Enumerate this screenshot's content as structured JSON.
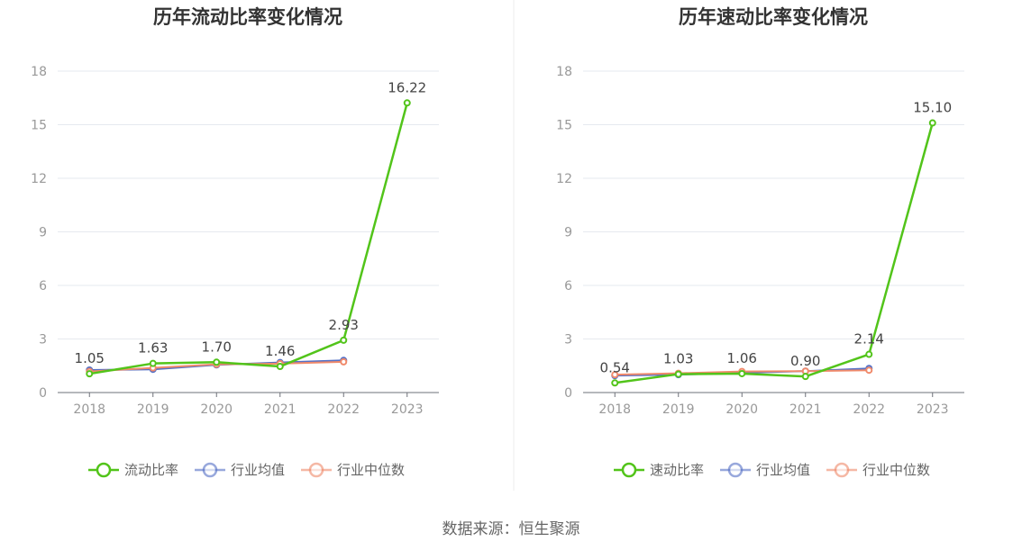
{
  "chart_data": [
    {
      "type": "line",
      "title": "历年流动比率变化情况",
      "categories": [
        "2018",
        "2019",
        "2020",
        "2021",
        "2022",
        "2023"
      ],
      "ylim": [
        0,
        18
      ],
      "yticks": [
        "0",
        "3",
        "6",
        "9",
        "12",
        "15",
        "18"
      ],
      "grid": true,
      "legend_position": "bottom",
      "series": [
        {
          "name": "流动比率",
          "color": "#52c41a",
          "values": [
            1.05,
            1.63,
            1.7,
            1.46,
            2.93,
            16.22
          ],
          "labels": [
            "1.05",
            "1.63",
            "1.70",
            "1.46",
            "2.93",
            "16.22"
          ]
        },
        {
          "name": "行业均值",
          "color": "#5470c6",
          "values": [
            1.26,
            1.3,
            1.55,
            1.68,
            1.8,
            null
          ]
        },
        {
          "name": "行业中位数",
          "color": "#f08a6b",
          "values": [
            1.18,
            1.38,
            1.58,
            1.62,
            1.72,
            null
          ]
        }
      ]
    },
    {
      "type": "line",
      "title": "历年速动比率变化情况",
      "categories": [
        "2018",
        "2019",
        "2020",
        "2021",
        "2022",
        "2023"
      ],
      "ylim": [
        0,
        18
      ],
      "yticks": [
        "0",
        "3",
        "6",
        "9",
        "12",
        "15",
        "18"
      ],
      "grid": true,
      "legend_position": "bottom",
      "series": [
        {
          "name": "速动比率",
          "color": "#52c41a",
          "values": [
            0.54,
            1.03,
            1.06,
            0.9,
            2.14,
            15.1
          ],
          "labels": [
            "0.54",
            "1.03",
            "1.06",
            "0.90",
            "2.14",
            "15.10"
          ]
        },
        {
          "name": "行业均值",
          "color": "#5470c6",
          "values": [
            0.95,
            1.0,
            1.1,
            1.2,
            1.35,
            null
          ]
        },
        {
          "name": "行业中位数",
          "color": "#f08a6b",
          "values": [
            1.0,
            1.08,
            1.18,
            1.2,
            1.25,
            null
          ]
        }
      ]
    }
  ],
  "footer": {
    "source": "数据来源：恒生聚源"
  }
}
